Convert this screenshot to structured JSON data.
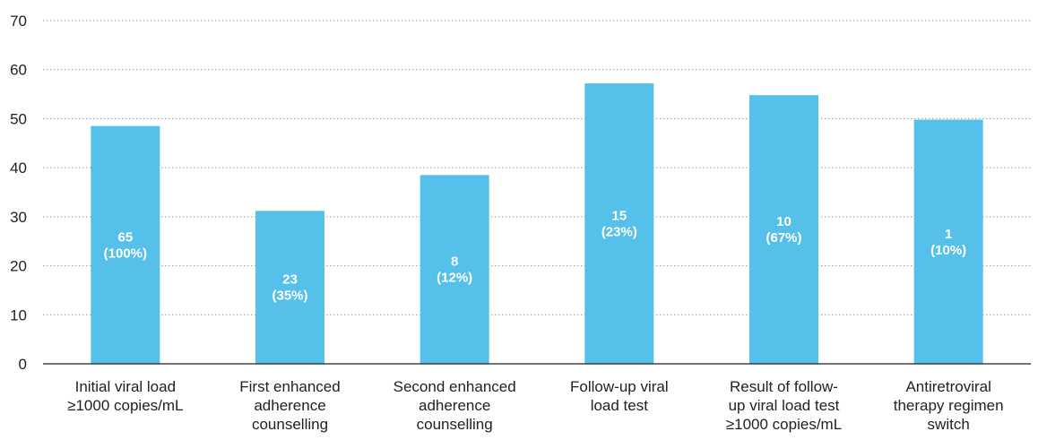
{
  "chart_data": {
    "type": "bar",
    "categories": [
      [
        "Initial viral load",
        "≥1000 copies/mL"
      ],
      [
        "First enhanced",
        "adherence",
        "counselling"
      ],
      [
        "Second enhanced",
        "adherence",
        "counselling"
      ],
      [
        "Follow-up viral",
        "load test"
      ],
      [
        "Result of follow-",
        "up viral load test",
        "≥1000 copies/mL"
      ],
      [
        "Antiretroviral",
        "therapy regimen",
        "switch"
      ]
    ],
    "values": [
      48.5,
      31.2,
      38.5,
      57.2,
      54.8,
      49.8
    ],
    "bar_labels": [
      [
        "65",
        "(100%)"
      ],
      [
        "23",
        "(35%)"
      ],
      [
        "8",
        "(12%)"
      ],
      [
        "15",
        "(23%)"
      ],
      [
        "10",
        "(67%)"
      ],
      [
        "1",
        "(10%)"
      ]
    ],
    "ylim": [
      0,
      70
    ],
    "yticks": [
      0,
      10,
      20,
      30,
      40,
      50,
      60,
      70
    ],
    "grid": true,
    "legend": "none",
    "title": "",
    "xlabel": "",
    "ylabel": "",
    "colors": {
      "bar": "#55c1ea",
      "bar_label": "#ffffff",
      "axis": "#222222",
      "grid": "#9a9a9a"
    }
  }
}
